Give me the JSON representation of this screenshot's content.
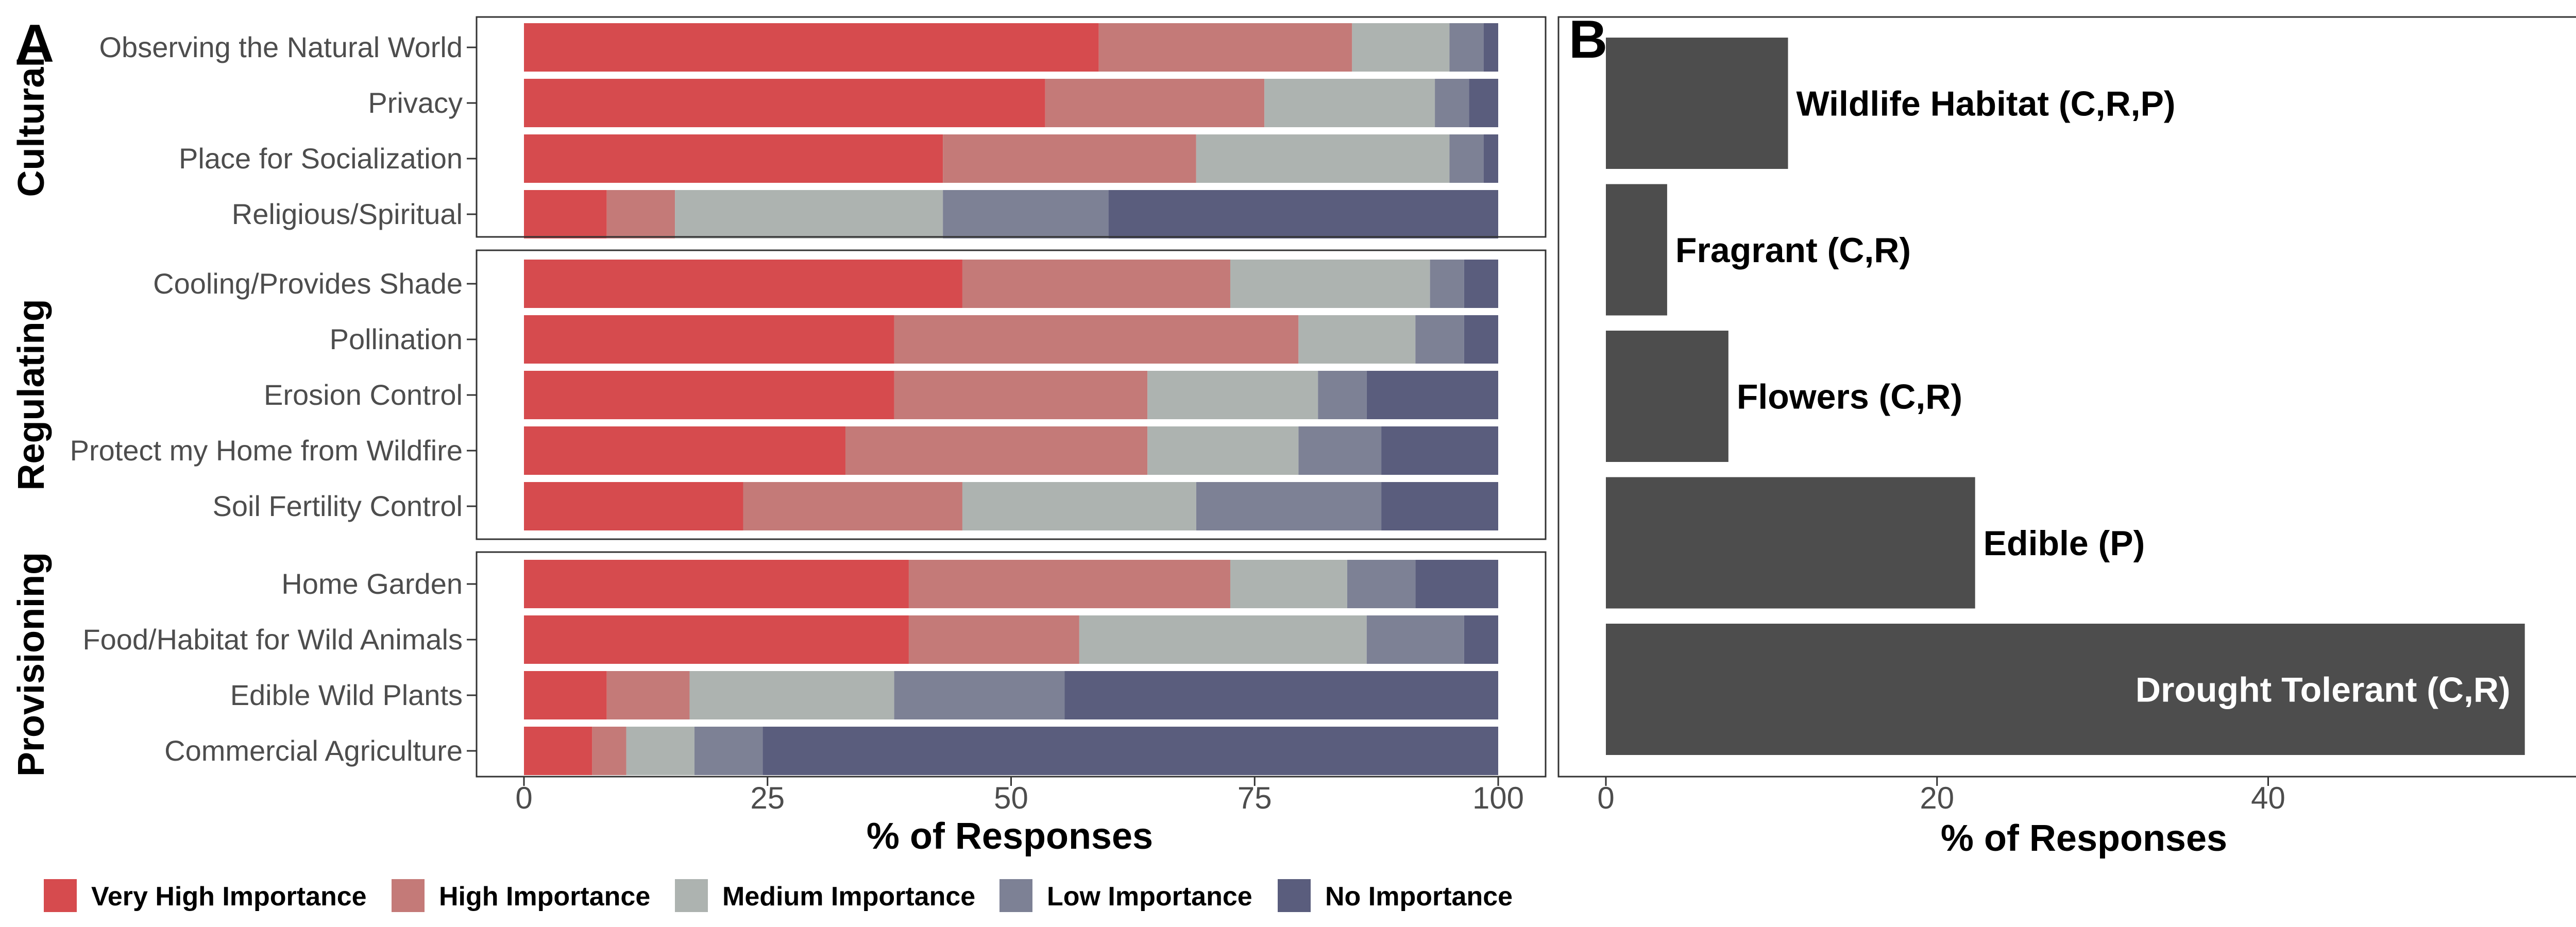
{
  "chart_data": [
    {
      "type": "bar",
      "orientation": "horizontal",
      "stacked": true,
      "panel_tag": "A",
      "xlabel": "% of Responses",
      "xlim": [
        0,
        100
      ],
      "xticks": [
        0,
        25,
        50,
        75,
        100
      ],
      "grid": false,
      "legend_position": "bottom",
      "series_names": [
        "Very High Importance",
        "High Importance",
        "Medium Importance",
        "Low Importance",
        "No Importance"
      ],
      "colors": [
        "#d64b4e",
        "#c47a78",
        "#adb3b0",
        "#7d8195",
        "#5a5d7d"
      ],
      "groups": [
        {
          "label": "Cultural",
          "categories": [
            {
              "label": "Observing the Natural World",
              "values": [
                59,
                26,
                10,
                3.5,
                1.5
              ]
            },
            {
              "label": "Privacy",
              "values": [
                53.5,
                22.5,
                17.5,
                3.5,
                3
              ]
            },
            {
              "label": "Place for Socialization",
              "values": [
                43,
                26,
                26,
                3.5,
                1.5
              ]
            },
            {
              "label": "Religious/Spiritual",
              "values": [
                8.5,
                7,
                27.5,
                17,
                40
              ]
            }
          ]
        },
        {
          "label": "Regulating",
          "categories": [
            {
              "label": "Cooling/Provides Shade",
              "values": [
                45,
                27.5,
                20.5,
                3.5,
                3.5
              ]
            },
            {
              "label": "Pollination",
              "values": [
                38,
                41.5,
                12,
                5,
                3.5
              ]
            },
            {
              "label": "Erosion Control",
              "values": [
                38,
                26,
                17.5,
                5,
                13.5
              ]
            },
            {
              "label": "Protect my Home from Wildfire",
              "values": [
                33,
                31,
                15.5,
                8.5,
                12
              ]
            },
            {
              "label": "Soil Fertility Control",
              "values": [
                22.5,
                22.5,
                24,
                19,
                12
              ]
            }
          ]
        },
        {
          "label": "Provisioning",
          "categories": [
            {
              "label": "Home Garden",
              "values": [
                39.5,
                33,
                12,
                7,
                8.5
              ]
            },
            {
              "label": "Food/Habitat for Wild Animals",
              "values": [
                39.5,
                17.5,
                29.5,
                10,
                3.5
              ]
            },
            {
              "label": "Edible Wild Plants",
              "values": [
                8.5,
                8.5,
                21,
                17.5,
                44.5
              ]
            },
            {
              "label": "Commercial Agriculture",
              "values": [
                7,
                3.5,
                7,
                7,
                75.5
              ]
            }
          ]
        }
      ]
    },
    {
      "type": "bar",
      "orientation": "horizontal",
      "panel_tag": "B",
      "xlabel": "% of Responses",
      "xlim": [
        0,
        58
      ],
      "xticks": [
        0,
        20,
        40
      ],
      "grid": false,
      "bar_color": "#4d4d4d",
      "categories": [
        "Wildlife Habitat (C,R,P)",
        "Fragrant (C,R)",
        "Flowers (C,R)",
        "Edible (P)",
        "Drought Tolerant (C,R)"
      ],
      "values": [
        11,
        3.7,
        7.4,
        22.3,
        55.5
      ]
    }
  ]
}
